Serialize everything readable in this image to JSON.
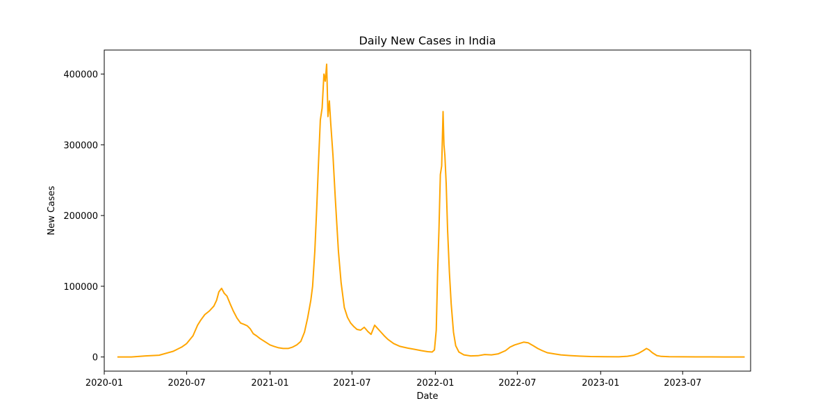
{
  "chart_data": {
    "type": "line",
    "title": "Daily New Cases in India",
    "xlabel": "Date",
    "ylabel": "New Cases",
    "x_ticks": [
      "2020-01",
      "2020-07",
      "2021-01",
      "2021-07",
      "2022-01",
      "2022-07",
      "2023-01",
      "2023-07"
    ],
    "y_ticks": [
      0,
      100000,
      200000,
      300000,
      400000
    ],
    "ylim": [
      -20000,
      434000
    ],
    "xlim": [
      "2020-01-01",
      "2023-11-28"
    ],
    "grid": false,
    "color": "#FFA500",
    "series": [
      {
        "x": [
          "2020-01-30",
          "2020-03-01",
          "2020-04-01",
          "2020-05-01",
          "2020-06-01",
          "2020-06-20",
          "2020-07-01",
          "2020-07-15",
          "2020-07-25",
          "2020-08-01",
          "2020-08-10",
          "2020-08-20",
          "2020-08-30",
          "2020-09-05",
          "2020-09-10",
          "2020-09-16",
          "2020-09-22",
          "2020-09-28",
          "2020-10-05",
          "2020-10-12",
          "2020-10-20",
          "2020-10-28",
          "2020-11-05",
          "2020-11-12",
          "2020-11-18",
          "2020-11-25",
          "2020-12-02",
          "2020-12-10",
          "2020-12-20",
          "2021-01-01",
          "2021-01-10",
          "2021-01-20",
          "2021-01-30",
          "2021-02-10",
          "2021-02-20",
          "2021-03-01",
          "2021-03-10",
          "2021-03-18",
          "2021-03-25",
          "2021-04-01",
          "2021-04-05",
          "2021-04-10",
          "2021-04-14",
          "2021-04-18",
          "2021-04-22",
          "2021-04-26",
          "2021-04-30",
          "2021-05-03",
          "2021-05-06",
          "2021-05-09",
          "2021-05-12",
          "2021-05-15",
          "2021-05-20",
          "2021-05-25",
          "2021-06-01",
          "2021-06-07",
          "2021-06-14",
          "2021-06-21",
          "2021-06-28",
          "2021-07-05",
          "2021-07-12",
          "2021-07-20",
          "2021-07-28",
          "2021-08-05",
          "2021-08-12",
          "2021-08-20",
          "2021-08-27",
          "2021-09-03",
          "2021-09-10",
          "2021-09-18",
          "2021-10-01",
          "2021-10-15",
          "2021-11-01",
          "2021-11-15",
          "2021-12-01",
          "2021-12-15",
          "2021-12-25",
          "2021-12-30",
          "2022-01-03",
          "2022-01-06",
          "2022-01-09",
          "2022-01-12",
          "2022-01-15",
          "2022-01-18",
          "2022-01-20",
          "2022-01-22",
          "2022-01-25",
          "2022-01-28",
          "2022-02-01",
          "2022-02-05",
          "2022-02-10",
          "2022-02-15",
          "2022-02-22",
          "2022-03-05",
          "2022-03-20",
          "2022-04-05",
          "2022-04-20",
          "2022-05-05",
          "2022-05-20",
          "2022-06-05",
          "2022-06-15",
          "2022-06-25",
          "2022-07-05",
          "2022-07-15",
          "2022-07-25",
          "2022-08-05",
          "2022-08-15",
          "2022-08-25",
          "2022-09-05",
          "2022-09-20",
          "2022-10-05",
          "2022-10-25",
          "2022-11-15",
          "2022-12-10",
          "2023-01-10",
          "2023-02-10",
          "2023-03-01",
          "2023-03-15",
          "2023-03-25",
          "2023-04-05",
          "2023-04-12",
          "2023-04-18",
          "2023-04-25",
          "2023-05-05",
          "2023-05-15",
          "2023-06-01",
          "2023-07-01",
          "2023-08-01",
          "2023-09-01",
          "2023-10-01",
          "2023-11-01",
          "2023-11-15"
        ],
        "y": [
          0,
          0,
          1500,
          2500,
          8000,
          14000,
          19000,
          30000,
          45000,
          52000,
          60000,
          65000,
          72000,
          80000,
          92000,
          97000,
          90000,
          86000,
          75000,
          65000,
          55000,
          48000,
          46000,
          44000,
          40000,
          33000,
          30000,
          26000,
          22000,
          17000,
          15000,
          13000,
          12000,
          12000,
          14000,
          17000,
          22000,
          35000,
          55000,
          80000,
          100000,
          150000,
          210000,
          275000,
          335000,
          352000,
          400000,
          390000,
          414000,
          340000,
          362000,
          330000,
          285000,
          225000,
          150000,
          105000,
          70000,
          56000,
          48000,
          43000,
          39000,
          38000,
          42000,
          36000,
          32000,
          45000,
          40000,
          35000,
          30000,
          25000,
          19000,
          15000,
          12500,
          11000,
          9000,
          7500,
          7000,
          10000,
          38000,
          120000,
          180000,
          258000,
          270000,
          347000,
          300000,
          285000,
          245000,
          180000,
          120000,
          75000,
          35000,
          16000,
          7000,
          3000,
          1500,
          1800,
          3500,
          3000,
          4500,
          9000,
          14000,
          17000,
          19000,
          21000,
          20000,
          16000,
          12000,
          9000,
          6000,
          4500,
          3000,
          2000,
          1200,
          600,
          300,
          200,
          1000,
          2500,
          5000,
          9000,
          12000,
          10000,
          6000,
          2000,
          800,
          300,
          200,
          100,
          100,
          50,
          50,
          50
        ]
      }
    ]
  }
}
